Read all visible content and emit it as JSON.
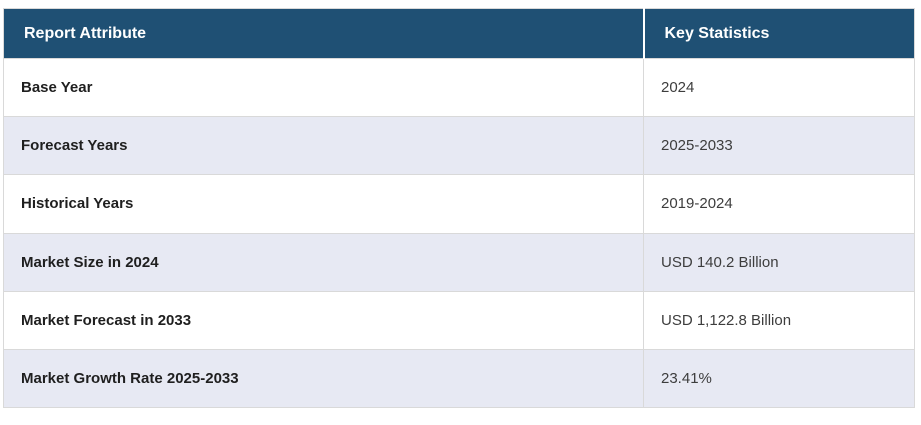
{
  "table": {
    "columns": [
      {
        "label": "Report Attribute"
      },
      {
        "label": "Key Statistics"
      }
    ],
    "rows": [
      {
        "attribute": "Base Year",
        "value": "2024"
      },
      {
        "attribute": "Forecast Years",
        "value": "2025-2033"
      },
      {
        "attribute": "Historical Years",
        "value": "2019-2024"
      },
      {
        "attribute": "Market Size in 2024",
        "value": "USD 140.2 Billion"
      },
      {
        "attribute": "Market Forecast in 2033",
        "value": "USD 1,122.8 Billion"
      },
      {
        "attribute": "Market Growth Rate 2025-2033",
        "value": "23.41%"
      }
    ],
    "colors": {
      "header_bg": "#1f5074",
      "header_text": "#ffffff",
      "row_bg": "#ffffff",
      "alt_row_bg": "#e7e9f3",
      "attr_text": "#1f1f1f",
      "value_text": "#3d3d3d",
      "border": "#d9d9d9"
    }
  },
  "chart_data": {
    "type": "table",
    "title": "",
    "columns": [
      "Report Attribute",
      "Key Statistics"
    ],
    "rows": [
      [
        "Base Year",
        "2024"
      ],
      [
        "Forecast Years",
        "2025-2033"
      ],
      [
        "Historical Years",
        "2019-2024"
      ],
      [
        "Market Size in 2024",
        "USD 140.2 Billion"
      ],
      [
        "Market Forecast in 2033",
        "USD 1,122.8 Billion"
      ],
      [
        "Market Growth Rate 2025-2033",
        "23.41%"
      ]
    ],
    "layout": {
      "header_style": "dark-blue-bold-white",
      "row_striping": "white / light-lavender alternating",
      "grid": "light horizontal and vertical dividers"
    }
  }
}
